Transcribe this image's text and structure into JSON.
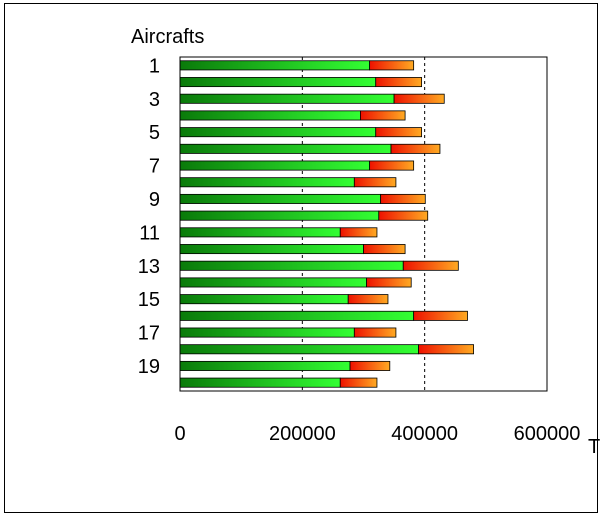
{
  "chart_data": {
    "type": "bar",
    "orientation": "horizontal",
    "stacked": true,
    "ylabel": "Aircrafts",
    "xlabel": "T",
    "xlim": [
      0,
      600000
    ],
    "x_ticks": [
      "0",
      "200000",
      "400000",
      "600000"
    ],
    "categories": [
      "1",
      "2",
      "3",
      "4",
      "5",
      "6",
      "7",
      "8",
      "9",
      "10",
      "11",
      "12",
      "13",
      "14",
      "15",
      "16",
      "17",
      "18",
      "19",
      "20"
    ],
    "category_labels_shown": [
      "1",
      "3",
      "5",
      "7",
      "9",
      "11",
      "13",
      "15",
      "17",
      "19"
    ],
    "series": [
      {
        "color_dark": "#0a7a0a",
        "color_light": "#33ff33",
        "values": [
          310000,
          320000,
          350000,
          295000,
          320000,
          345000,
          310000,
          285000,
          328000,
          325000,
          262000,
          300000,
          365000,
          305000,
          275000,
          382000,
          285000,
          390000,
          278000,
          262000
        ]
      },
      {
        "color_dark": "#ee1100",
        "color_light": "#ffaa22",
        "values": [
          72000,
          75000,
          82000,
          73000,
          75000,
          80000,
          72000,
          68000,
          73000,
          80000,
          60000,
          68000,
          90000,
          73000,
          65000,
          88000,
          68000,
          90000,
          65000,
          60000
        ]
      }
    ],
    "grid": "vertical dashed at 200000 and 400000"
  }
}
